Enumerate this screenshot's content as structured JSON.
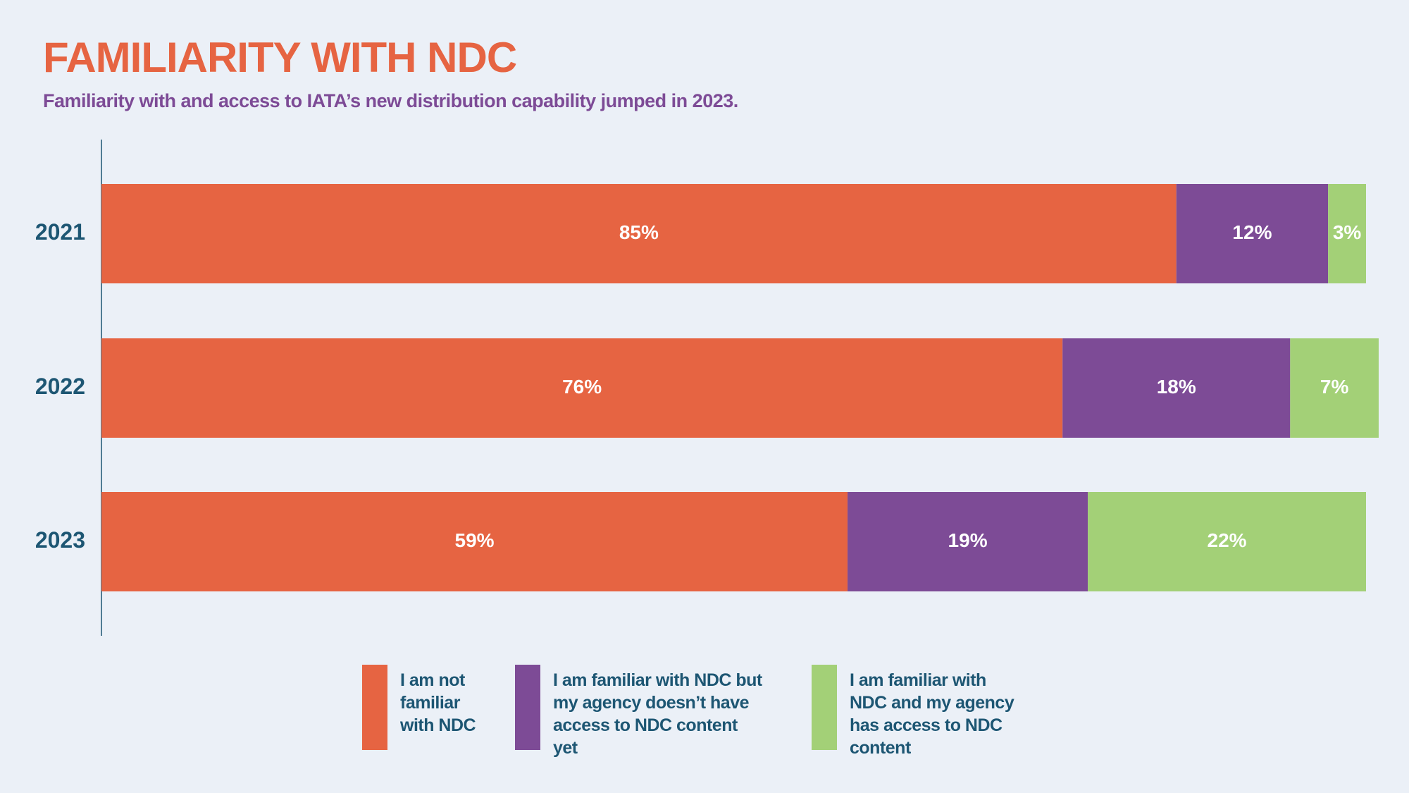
{
  "chart_data": {
    "type": "stacked-bar-horizontal",
    "title": "FAMILIARITY WITH NDC",
    "subtitle": "Familiarity with and access to IATA’s new distribution capability jumped in 2023.",
    "categories": [
      "2021",
      "2022",
      "2023"
    ],
    "xlim": [
      0,
      100
    ],
    "series": [
      {
        "name": "I am not familiar with NDC",
        "color": "#e66442",
        "values": [
          85,
          76,
          59
        ],
        "value_labels": [
          "85%",
          "76%",
          "59%"
        ]
      },
      {
        "name": "I am familiar with NDC but my agency doesn’t have access to NDC content yet",
        "color": "#7d4b96",
        "values": [
          12,
          18,
          19
        ],
        "value_labels": [
          "12%",
          "18%",
          "19%"
        ]
      },
      {
        "name": "I am familiar with NDC and my agency has access to NDC content",
        "color": "#a3d077",
        "values": [
          3,
          7,
          22
        ],
        "value_labels": [
          "3%",
          "7%",
          "22%"
        ]
      }
    ]
  }
}
